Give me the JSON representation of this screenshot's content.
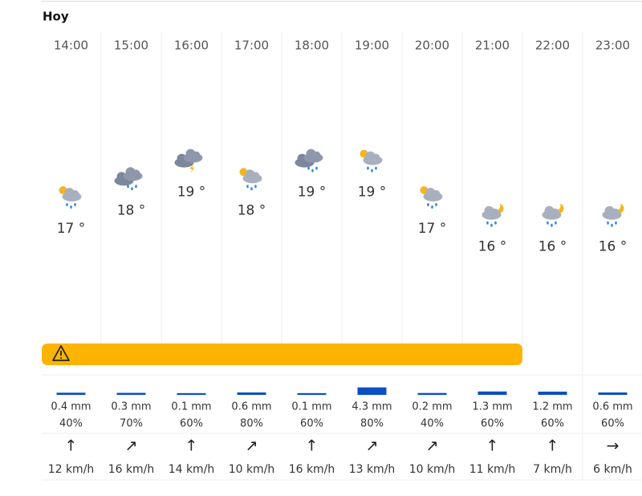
{
  "header": {
    "title": "Hoy"
  },
  "hours": [
    {
      "time": "14:00",
      "temp": "17 °",
      "precip": "0.4 mm",
      "prob": "40%",
      "wind_dir": "↑",
      "wind": "12 km/h"
    },
    {
      "time": "15:00",
      "temp": "18 °",
      "precip": "0.3 mm",
      "prob": "70%",
      "wind_dir": "↗",
      "wind": "16 km/h"
    },
    {
      "time": "16:00",
      "temp": "19 °",
      "precip": "0.1 mm",
      "prob": "60%",
      "wind_dir": "↑",
      "wind": "14 km/h"
    },
    {
      "time": "17:00",
      "temp": "18 °",
      "precip": "0.6 mm",
      "prob": "80%",
      "wind_dir": "↗",
      "wind": "10 km/h"
    },
    {
      "time": "18:00",
      "temp": "19 °",
      "precip": "0.1 mm",
      "prob": "60%",
      "wind_dir": "↑",
      "wind": "16 km/h"
    },
    {
      "time": "19:00",
      "temp": "19 °",
      "precip": "4.3 mm",
      "prob": "80%",
      "wind_dir": "↗",
      "wind": "13 km/h"
    },
    {
      "time": "20:00",
      "temp": "17 °",
      "precip": "0.2 mm",
      "prob": "40%",
      "wind_dir": "↗",
      "wind": "10 km/h"
    },
    {
      "time": "21:00",
      "temp": "16 °",
      "precip": "1.3 mm",
      "prob": "60%",
      "wind_dir": "↑",
      "wind": "11 km/h"
    },
    {
      "time": "22:00",
      "temp": "16 °",
      "precip": "1.2 mm",
      "prob": "60%",
      "wind_dir": "↑",
      "wind": "7 km/h"
    },
    {
      "time": "23:00",
      "temp": "16 °",
      "precip": "0.6 mm",
      "prob": "60%",
      "wind_dir": "→",
      "wind": "6 km/h"
    }
  ]
}
